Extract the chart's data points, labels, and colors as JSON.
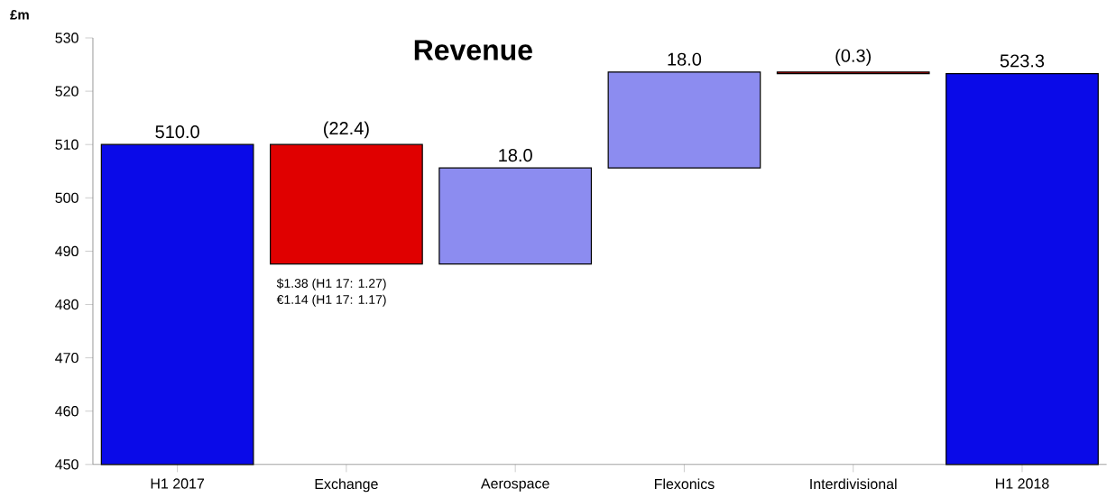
{
  "chart_data": {
    "type": "bar",
    "title": "Revenue",
    "ylabel": "£m",
    "categories": [
      "H1 2017",
      "Exchange",
      "Aerospace",
      "Flexonics",
      "Interdivisional",
      "H1 2018"
    ],
    "base": [
      450,
      487.6,
      487.6,
      505.6,
      523.3,
      450
    ],
    "values": [
      60,
      22.4,
      18,
      18,
      0.3,
      73.3
    ],
    "colors": [
      "#0a0ae8",
      "#e00000",
      "#8c8cf0",
      "#8c8cf0",
      "#e00000",
      "#0a0ae8"
    ],
    "value_labels": [
      "510.0",
      "(22.4)",
      "18.0",
      "18.0",
      "(0.3)",
      "523.3"
    ],
    "annotations": [
      "$1.38 (H1 17: 1.27)",
      "€1.14 (H1 17: 1.17)"
    ],
    "ylim": [
      450,
      530
    ],
    "yticks": [
      450,
      460,
      470,
      480,
      490,
      500,
      510,
      520,
      530
    ],
    "grid": false
  }
}
